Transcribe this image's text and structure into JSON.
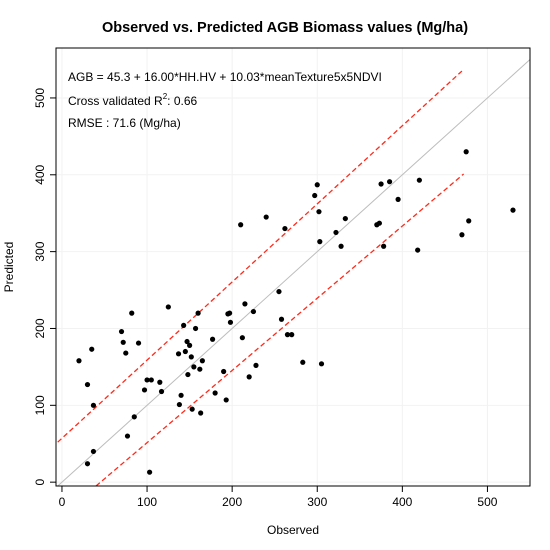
{
  "chart_data": {
    "type": "scatter",
    "title": "Observed vs. Predicted AGB Biomass values (Mg/ha)",
    "xlabel": "Observed",
    "ylabel": "Predicted",
    "xlim": [
      -7,
      550
    ],
    "ylim": [
      -5,
      565
    ],
    "xticks": [
      0,
      100,
      200,
      300,
      400,
      500
    ],
    "yticks": [
      0,
      100,
      200,
      300,
      400,
      500
    ],
    "grid": true,
    "annotations": {
      "equation": "AGB = 45.3 + 16.00*HH.HV + 10.03*meanTexture5x5NDVI",
      "r2_prefix": "Cross validated R",
      "r2_sup": "2",
      "r2_value": ":  0.66",
      "rmse": "RMSE :  71.6 (Mg/ha)"
    },
    "reference_line": {
      "name": "1:1",
      "color": "#bdbdbd"
    },
    "interval_color": "#ff2a1a",
    "upper_interval": [
      [
        -5,
        52
      ],
      [
        470,
        535
      ]
    ],
    "lower_interval": [
      [
        40,
        -10
      ],
      [
        472,
        401
      ]
    ],
    "points": [
      {
        "x": 20,
        "y": 158
      },
      {
        "x": 30,
        "y": 127
      },
      {
        "x": 35,
        "y": 173
      },
      {
        "x": 37,
        "y": 100
      },
      {
        "x": 37,
        "y": 40
      },
      {
        "x": 30,
        "y": 24
      },
      {
        "x": 70,
        "y": 196
      },
      {
        "x": 72,
        "y": 182
      },
      {
        "x": 75,
        "y": 168
      },
      {
        "x": 82,
        "y": 220
      },
      {
        "x": 90,
        "y": 181
      },
      {
        "x": 77,
        "y": 60
      },
      {
        "x": 85,
        "y": 85
      },
      {
        "x": 97,
        "y": 120
      },
      {
        "x": 100,
        "y": 133
      },
      {
        "x": 105,
        "y": 133
      },
      {
        "x": 103,
        "y": 13
      },
      {
        "x": 115,
        "y": 130
      },
      {
        "x": 117,
        "y": 118
      },
      {
        "x": 125,
        "y": 228
      },
      {
        "x": 137,
        "y": 167
      },
      {
        "x": 138,
        "y": 101
      },
      {
        "x": 140,
        "y": 113
      },
      {
        "x": 143,
        "y": 204
      },
      {
        "x": 145,
        "y": 170
      },
      {
        "x": 147,
        "y": 183
      },
      {
        "x": 148,
        "y": 140
      },
      {
        "x": 150,
        "y": 178
      },
      {
        "x": 152,
        "y": 163
      },
      {
        "x": 153,
        "y": 95
      },
      {
        "x": 155,
        "y": 150
      },
      {
        "x": 157,
        "y": 200
      },
      {
        "x": 160,
        "y": 220
      },
      {
        "x": 162,
        "y": 147
      },
      {
        "x": 163,
        "y": 90
      },
      {
        "x": 165,
        "y": 158
      },
      {
        "x": 177,
        "y": 186
      },
      {
        "x": 180,
        "y": 116
      },
      {
        "x": 190,
        "y": 144
      },
      {
        "x": 193,
        "y": 107
      },
      {
        "x": 195,
        "y": 219
      },
      {
        "x": 197,
        "y": 220
      },
      {
        "x": 198,
        "y": 208
      },
      {
        "x": 210,
        "y": 335
      },
      {
        "x": 212,
        "y": 188
      },
      {
        "x": 215,
        "y": 232
      },
      {
        "x": 220,
        "y": 137
      },
      {
        "x": 225,
        "y": 222
      },
      {
        "x": 228,
        "y": 152
      },
      {
        "x": 240,
        "y": 345
      },
      {
        "x": 255,
        "y": 248
      },
      {
        "x": 258,
        "y": 212
      },
      {
        "x": 262,
        "y": 330
      },
      {
        "x": 265,
        "y": 192
      },
      {
        "x": 270,
        "y": 192
      },
      {
        "x": 283,
        "y": 156
      },
      {
        "x": 297,
        "y": 373
      },
      {
        "x": 300,
        "y": 387
      },
      {
        "x": 302,
        "y": 352
      },
      {
        "x": 303,
        "y": 313
      },
      {
        "x": 305,
        "y": 154
      },
      {
        "x": 322,
        "y": 325
      },
      {
        "x": 328,
        "y": 307
      },
      {
        "x": 333,
        "y": 343
      },
      {
        "x": 370,
        "y": 335
      },
      {
        "x": 373,
        "y": 337
      },
      {
        "x": 375,
        "y": 388
      },
      {
        "x": 378,
        "y": 307
      },
      {
        "x": 385,
        "y": 391
      },
      {
        "x": 395,
        "y": 368
      },
      {
        "x": 418,
        "y": 302
      },
      {
        "x": 420,
        "y": 393
      },
      {
        "x": 470,
        "y": 322
      },
      {
        "x": 475,
        "y": 430
      },
      {
        "x": 478,
        "y": 340
      },
      {
        "x": 530,
        "y": 354
      }
    ]
  }
}
